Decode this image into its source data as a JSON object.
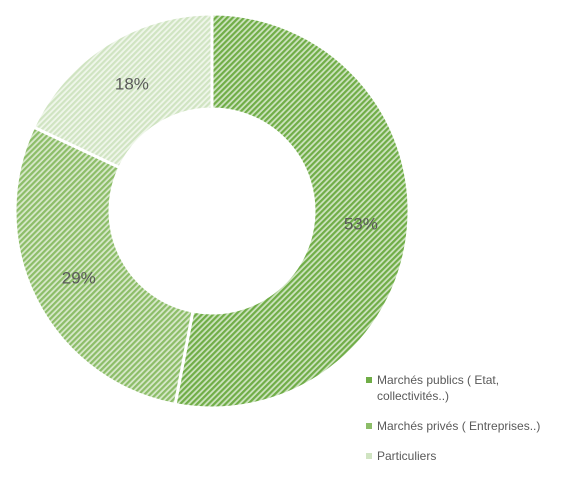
{
  "chart_data": {
    "type": "donut",
    "categories": [
      "Marchés publics ( Etat, collectivités..)",
      "Marchés privés ( Entreprises..)",
      "Particuliers"
    ],
    "values": [
      53,
      29,
      18
    ],
    "value_labels": [
      "53%",
      "29%",
      "18%"
    ],
    "colors": [
      "#70ad47",
      "#8cbd68",
      "#d0e4c2"
    ],
    "legend": "bottom-right"
  }
}
